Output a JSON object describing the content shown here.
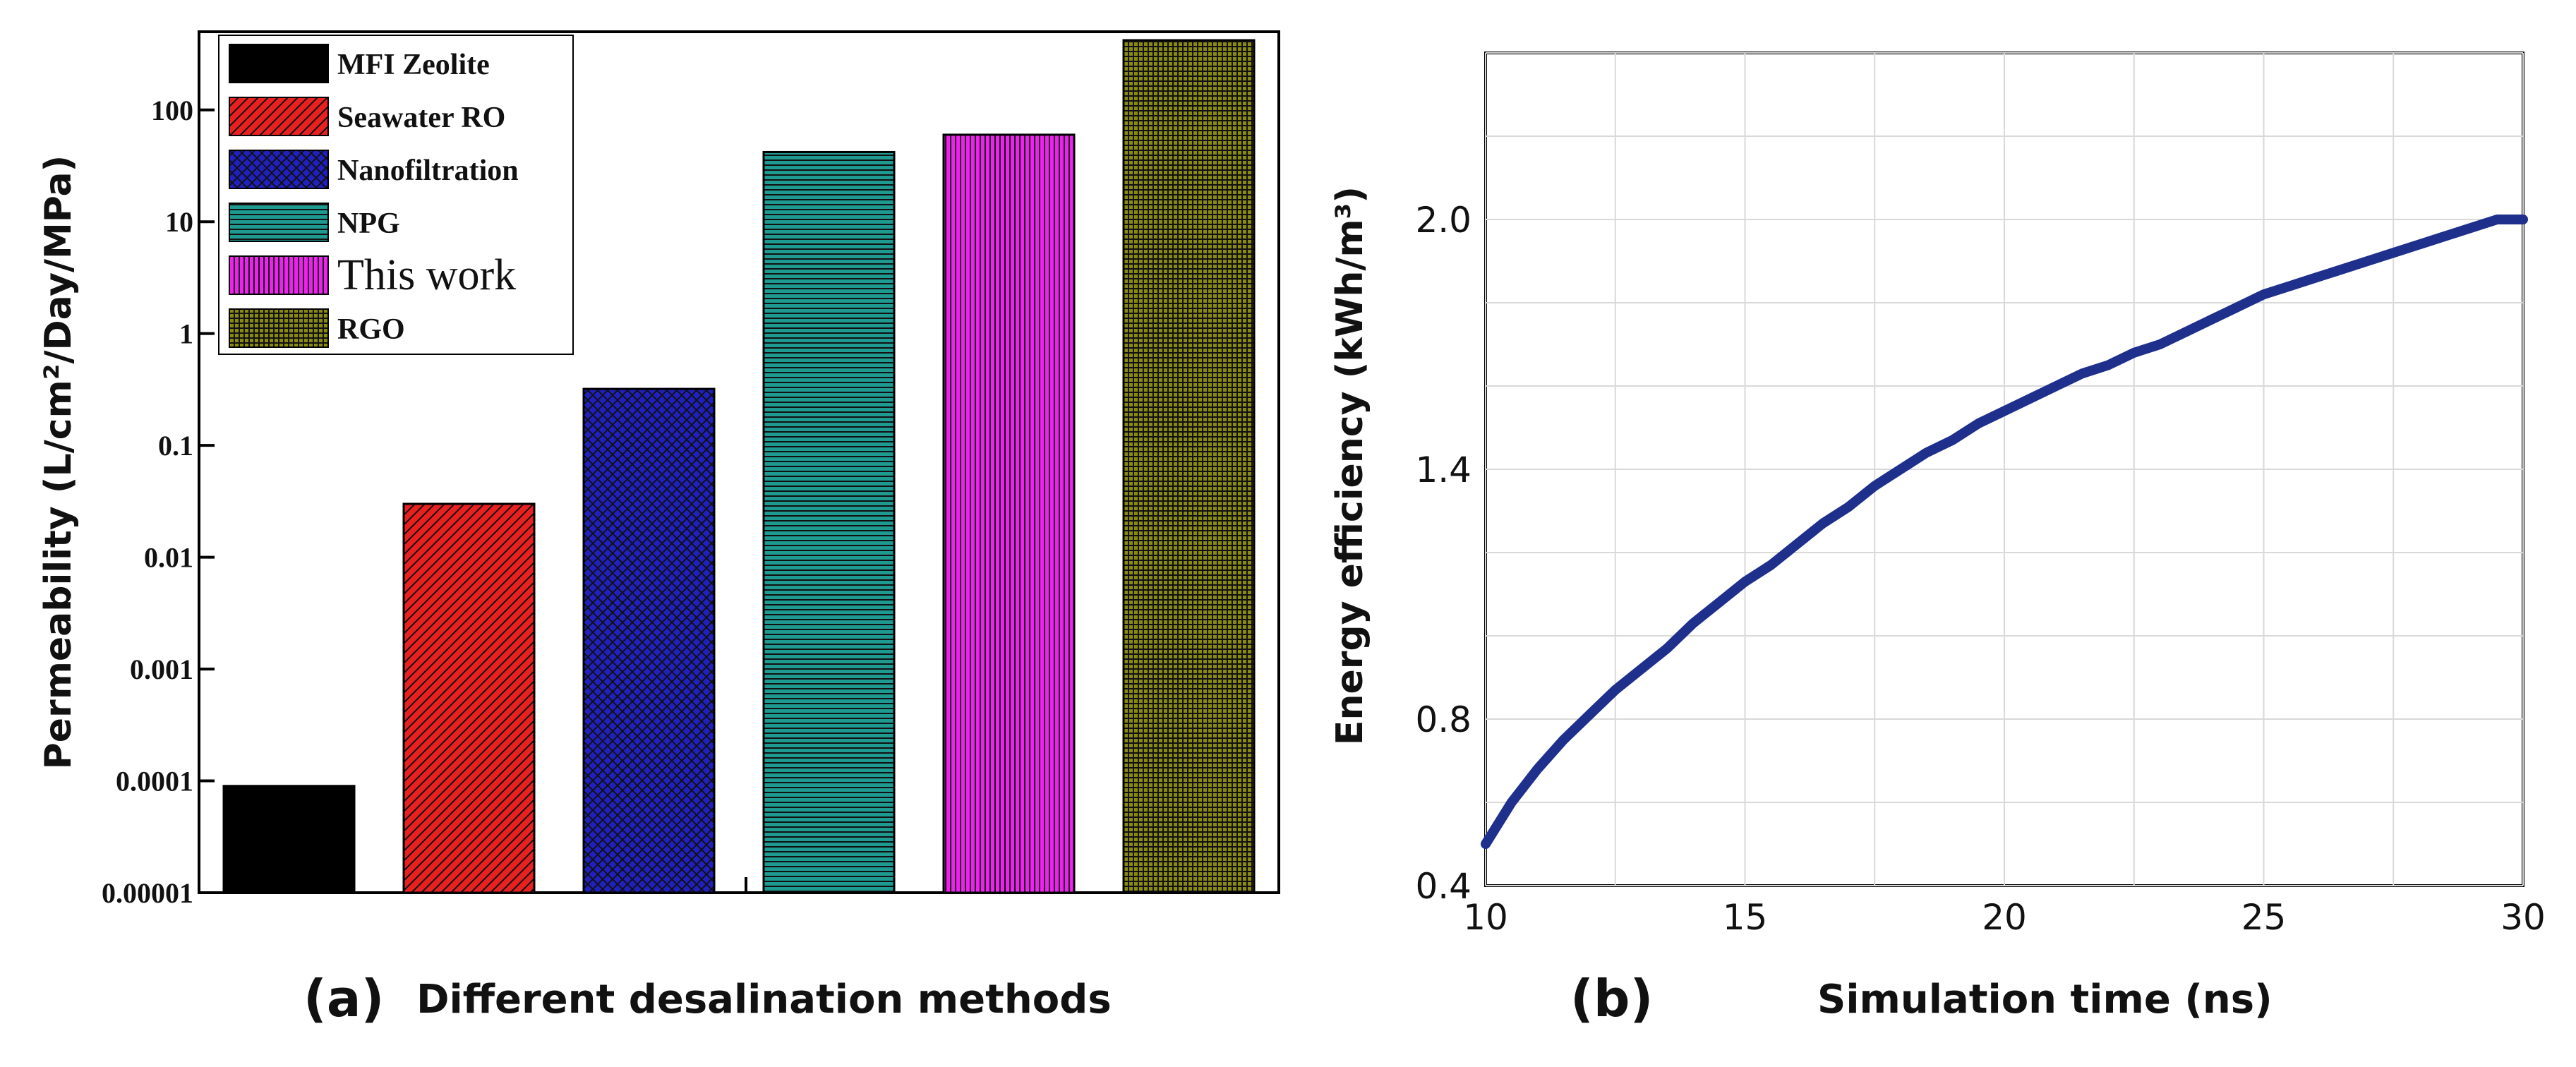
{
  "chart_data": [
    {
      "type": "bar",
      "panel_label": "(a)",
      "xlabel": "Different desalination methods",
      "ylabel": "Permeability (L/cm²/Day/MPa)",
      "yscale": "log",
      "ylim": [
        1e-05,
        500
      ],
      "ytick_values": [
        1e-05,
        0.0001,
        0.001,
        0.01,
        0.1,
        1,
        10,
        100
      ],
      "ytick_labels": [
        "0.00001",
        "0.0001",
        "0.001",
        "0.01",
        "0.1",
        "1",
        "10",
        "100"
      ],
      "legend_position": "top-left",
      "series": [
        {
          "name": "MFI Zeolite",
          "value": 9e-05,
          "color": "#000000",
          "pattern": "solid"
        },
        {
          "name": "Seawater RO",
          "value": 0.03,
          "color": "#e82020",
          "pattern": "diagonal"
        },
        {
          "name": "Nanofiltration",
          "value": 0.32,
          "color": "#2020c0",
          "pattern": "crosshatch"
        },
        {
          "name": "NPG",
          "value": 42,
          "color": "#1f9a90",
          "pattern": "horizontal"
        },
        {
          "name": "This work",
          "value": 60,
          "color": "#f020f0",
          "pattern": "vertical"
        },
        {
          "name": "RGO",
          "value": 420,
          "color": "#8a8a10",
          "pattern": "grid"
        }
      ]
    },
    {
      "type": "line",
      "panel_label": "(b)",
      "xlabel": "Simulation time (ns)",
      "ylabel": "Energy efficiency (kWh/m³)",
      "xlim": [
        10,
        30
      ],
      "ylim": [
        0.4,
        2.4
      ],
      "xticks": [
        10,
        15,
        20,
        25,
        30
      ],
      "yticks": [
        0.4,
        0.8,
        1.4,
        2.0
      ],
      "ytick_labels": [
        "0.4",
        "0.8",
        "1.4",
        "2.0"
      ],
      "grid": true,
      "line_color": "#1e2f8c",
      "x": [
        10,
        10.5,
        11,
        11.5,
        12,
        12.5,
        13,
        13.5,
        14,
        14.5,
        15,
        15.5,
        16,
        16.5,
        17,
        17.5,
        18,
        18.5,
        19,
        19.5,
        20,
        20.5,
        21,
        21.5,
        22,
        22.5,
        23,
        23.5,
        24,
        24.5,
        25,
        25.5,
        26,
        26.5,
        27,
        27.5,
        28,
        28.5,
        29,
        29.5,
        30
      ],
      "y": [
        0.5,
        0.6,
        0.68,
        0.75,
        0.81,
        0.87,
        0.92,
        0.97,
        1.03,
        1.08,
        1.13,
        1.17,
        1.22,
        1.27,
        1.31,
        1.36,
        1.4,
        1.44,
        1.47,
        1.51,
        1.54,
        1.57,
        1.6,
        1.63,
        1.65,
        1.68,
        1.7,
        1.73,
        1.76,
        1.79,
        1.82,
        1.84,
        1.86,
        1.88,
        1.9,
        1.92,
        1.94,
        1.96,
        1.98,
        2.0,
        2.0
      ]
    }
  ]
}
